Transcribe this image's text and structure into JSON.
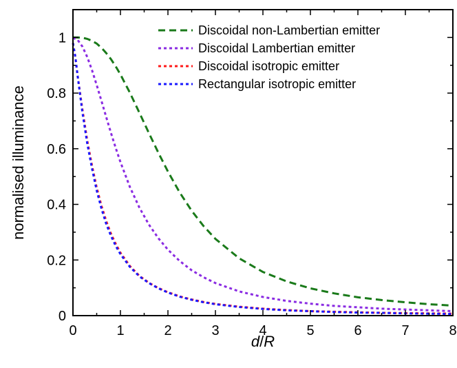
{
  "chart_data": {
    "type": "line",
    "title": "",
    "xlabel": "d/R",
    "ylabel": "normalised illuminance",
    "xlim": [
      0,
      8
    ],
    "ylim": [
      0,
      1.1
    ],
    "x_ticks": [
      "0",
      "1",
      "2",
      "3",
      "4",
      "5",
      "6",
      "7",
      "8"
    ],
    "y_ticks": [
      "0",
      "0.2",
      "0.4",
      "0.6",
      "0.8",
      "1"
    ],
    "grid": false,
    "legend_position": "top-right",
    "series": [
      {
        "name": "Discoidal non-Lambertian emitter",
        "color": "#1a7a1a",
        "dash": "dashed",
        "x": [
          0,
          0.1,
          0.2,
          0.3,
          0.4,
          0.5,
          0.6,
          0.7,
          0.8,
          0.9,
          1.0,
          1.2,
          1.4,
          1.6,
          1.8,
          2.0,
          2.25,
          2.5,
          2.75,
          3.0,
          3.5,
          4.0,
          4.5,
          5.0,
          5.5,
          6.0,
          6.5,
          7.0,
          7.5,
          8.0
        ],
        "y": [
          1.0,
          1.0,
          0.999,
          0.995,
          0.988,
          0.978,
          0.963,
          0.944,
          0.922,
          0.896,
          0.867,
          0.801,
          0.729,
          0.656,
          0.585,
          0.518,
          0.442,
          0.377,
          0.322,
          0.276,
          0.206,
          0.157,
          0.123,
          0.098,
          0.08,
          0.066,
          0.056,
          0.048,
          0.041,
          0.036
        ]
      },
      {
        "name": "Discoidal Lambertian emitter",
        "color": "#8a2be2",
        "dash": "dotted",
        "x": [
          0,
          0.1,
          0.2,
          0.3,
          0.4,
          0.5,
          0.6,
          0.7,
          0.8,
          0.9,
          1.0,
          1.2,
          1.4,
          1.6,
          1.8,
          2.0,
          2.25,
          2.5,
          2.75,
          3.0,
          3.5,
          4.0,
          4.5,
          5.0,
          5.5,
          6.0,
          6.5,
          7.0,
          7.5,
          8.0
        ],
        "y": [
          0.999,
          0.991,
          0.967,
          0.93,
          0.883,
          0.829,
          0.772,
          0.714,
          0.657,
          0.603,
          0.552,
          0.462,
          0.388,
          0.327,
          0.278,
          0.237,
          0.196,
          0.163,
          0.138,
          0.117,
          0.087,
          0.067,
          0.053,
          0.043,
          0.035,
          0.03,
          0.025,
          0.022,
          0.019,
          0.016
        ]
      },
      {
        "name": "Discoidal isotropic emitter",
        "color": "#ff1a1a",
        "dash": "dotted",
        "x": [
          0,
          0.05,
          0.1,
          0.2,
          0.3,
          0.4,
          0.5,
          0.6,
          0.7,
          0.8,
          0.9,
          1.0,
          1.2,
          1.4,
          1.6,
          1.8,
          2.0,
          2.25,
          2.5,
          2.75,
          3.0,
          3.5,
          4.0,
          4.5,
          5.0,
          5.5,
          6.0,
          6.5,
          7.0,
          7.5,
          8.0
        ],
        "y": [
          0.98,
          0.93,
          0.86,
          0.74,
          0.63,
          0.54,
          0.46,
          0.395,
          0.34,
          0.295,
          0.258,
          0.226,
          0.178,
          0.143,
          0.118,
          0.099,
          0.084,
          0.069,
          0.058,
          0.049,
          0.042,
          0.032,
          0.025,
          0.02,
          0.016,
          0.014,
          0.012,
          0.01,
          0.009,
          0.008,
          0.007
        ]
      },
      {
        "name": "Rectangular isotropic emitter",
        "color": "#1a1aff",
        "dash": "dotted",
        "x": [
          0,
          0.05,
          0.1,
          0.2,
          0.3,
          0.4,
          0.5,
          0.6,
          0.7,
          0.8,
          0.9,
          1.0,
          1.2,
          1.4,
          1.6,
          1.8,
          2.0,
          2.25,
          2.5,
          2.75,
          3.0,
          3.5,
          4.0,
          4.5,
          5.0,
          5.5,
          6.0,
          6.5,
          7.0,
          7.5,
          8.0
        ],
        "y": [
          0.98,
          0.93,
          0.86,
          0.73,
          0.62,
          0.53,
          0.45,
          0.385,
          0.33,
          0.287,
          0.251,
          0.221,
          0.175,
          0.141,
          0.117,
          0.098,
          0.083,
          0.068,
          0.057,
          0.048,
          0.041,
          0.031,
          0.024,
          0.019,
          0.016,
          0.013,
          0.011,
          0.01,
          0.008,
          0.007,
          0.006
        ]
      }
    ]
  }
}
